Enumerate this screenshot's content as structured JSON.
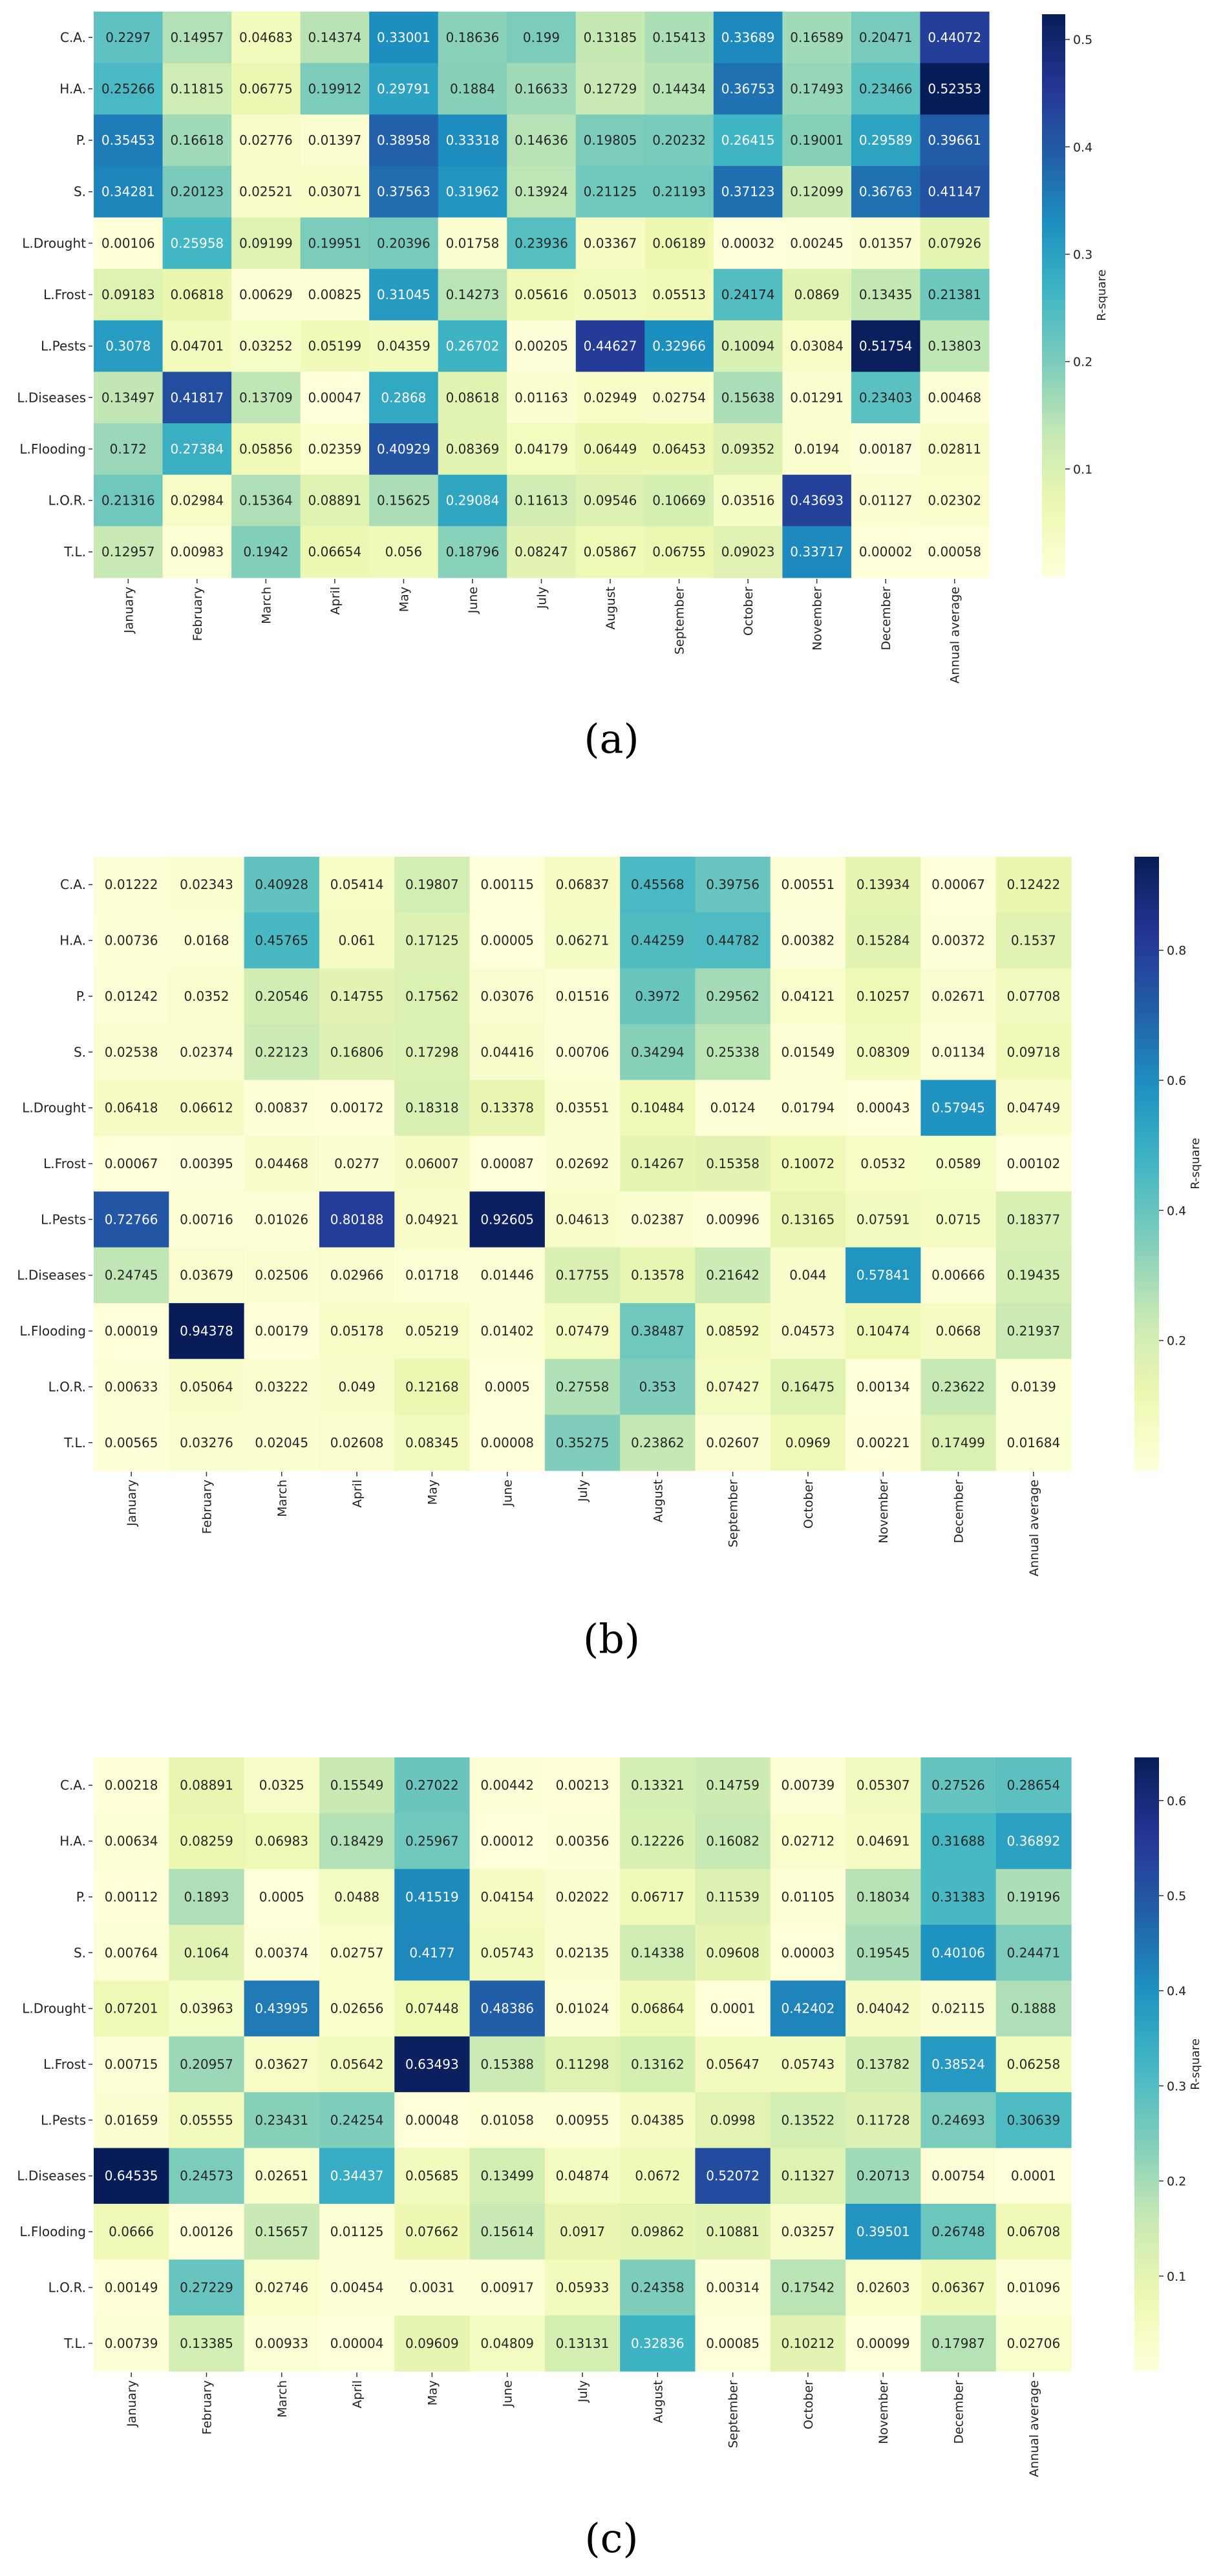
{
  "rows": [
    "C.A.",
    "H.A.",
    "P.",
    "S.",
    "L.Drought",
    "L.Frost",
    "L.Pests",
    "L.Diseases",
    "L.Flooding",
    "L.O.R.",
    "T.L."
  ],
  "columns": [
    "January",
    "February",
    "March",
    "April",
    "May",
    "June",
    "July",
    "August",
    "September",
    "October",
    "November",
    "December",
    "Annual average"
  ],
  "colorbar_title": "R-square",
  "chart_data": [
    {
      "type": "heatmap",
      "caption": "(a)",
      "vmax": 0.52353,
      "ticks": [
        "0.1",
        "0.2",
        "0.3",
        "0.4",
        "0.5"
      ],
      "values": [
        [
          "0.2297",
          "0.14957",
          "0.04683",
          "0.14374",
          "0.33001",
          "0.18636",
          "0.199",
          "0.13185",
          "0.15413",
          "0.33689",
          "0.16589",
          "0.20471",
          "0.44072"
        ],
        [
          "0.25266",
          "0.11815",
          "0.06775",
          "0.19912",
          "0.29791",
          "0.1884",
          "0.16633",
          "0.12729",
          "0.14434",
          "0.36753",
          "0.17493",
          "0.23466",
          "0.52353"
        ],
        [
          "0.35453",
          "0.16618",
          "0.02776",
          "0.01397",
          "0.38958",
          "0.33318",
          "0.14636",
          "0.19805",
          "0.20232",
          "0.26415",
          "0.19001",
          "0.29589",
          "0.39661"
        ],
        [
          "0.34281",
          "0.20123",
          "0.02521",
          "0.03071",
          "0.37563",
          "0.31962",
          "0.13924",
          "0.21125",
          "0.21193",
          "0.37123",
          "0.12099",
          "0.36763",
          "0.41147"
        ],
        [
          "0.00106",
          "0.25958",
          "0.09199",
          "0.19951",
          "0.20396",
          "0.01758",
          "0.23936",
          "0.03367",
          "0.06189",
          "0.00032",
          "0.00245",
          "0.01357",
          "0.07926"
        ],
        [
          "0.09183",
          "0.06818",
          "0.00629",
          "0.00825",
          "0.31045",
          "0.14273",
          "0.05616",
          "0.05013",
          "0.05513",
          "0.24174",
          "0.0869",
          "0.13435",
          "0.21381"
        ],
        [
          "0.3078",
          "0.04701",
          "0.03252",
          "0.05199",
          "0.04359",
          "0.26702",
          "0.00205",
          "0.44627",
          "0.32966",
          "0.10094",
          "0.03084",
          "0.51754",
          "0.13803"
        ],
        [
          "0.13497",
          "0.41817",
          "0.13709",
          "0.00047",
          "0.2868",
          "0.08618",
          "0.01163",
          "0.02949",
          "0.02754",
          "0.15638",
          "0.01291",
          "0.23403",
          "0.00468"
        ],
        [
          "0.172",
          "0.27384",
          "0.05856",
          "0.02359",
          "0.40929",
          "0.08369",
          "0.04179",
          "0.06449",
          "0.06453",
          "0.09352",
          "0.0194",
          "0.00187",
          "0.02811"
        ],
        [
          "0.21316",
          "0.02984",
          "0.15364",
          "0.08891",
          "0.15625",
          "0.29084",
          "0.11613",
          "0.09546",
          "0.10669",
          "0.03516",
          "0.43693",
          "0.01127",
          "0.02302"
        ],
        [
          "0.12957",
          "0.00983",
          "0.1942",
          "0.06654",
          "0.056",
          "0.18796",
          "0.08247",
          "0.05867",
          "0.06755",
          "0.09023",
          "0.33717",
          "0.00002",
          "0.00058"
        ]
      ]
    },
    {
      "type": "heatmap",
      "caption": "(b)",
      "vmax": 0.94378,
      "ticks": [
        "0.2",
        "0.4",
        "0.6",
        "0.8"
      ],
      "values": [
        [
          "0.01222",
          "0.02343",
          "0.40928",
          "0.05414",
          "0.19807",
          "0.00115",
          "0.06837",
          "0.45568",
          "0.39756",
          "0.00551",
          "0.13934",
          "0.00067",
          "0.12422"
        ],
        [
          "0.00736",
          "0.0168",
          "0.45765",
          "0.061",
          "0.17125",
          "0.00005",
          "0.06271",
          "0.44259",
          "0.44782",
          "0.00382",
          "0.15284",
          "0.00372",
          "0.1537"
        ],
        [
          "0.01242",
          "0.0352",
          "0.20546",
          "0.14755",
          "0.17562",
          "0.03076",
          "0.01516",
          "0.3972",
          "0.29562",
          "0.04121",
          "0.10257",
          "0.02671",
          "0.07708"
        ],
        [
          "0.02538",
          "0.02374",
          "0.22123",
          "0.16806",
          "0.17298",
          "0.04416",
          "0.00706",
          "0.34294",
          "0.25338",
          "0.01549",
          "0.08309",
          "0.01134",
          "0.09718"
        ],
        [
          "0.06418",
          "0.06612",
          "0.00837",
          "0.00172",
          "0.18318",
          "0.13378",
          "0.03551",
          "0.10484",
          "0.0124",
          "0.01794",
          "0.00043",
          "0.57945",
          "0.04749"
        ],
        [
          "0.00067",
          "0.00395",
          "0.04468",
          "0.0277",
          "0.06007",
          "0.00087",
          "0.02692",
          "0.14267",
          "0.15358",
          "0.10072",
          "0.0532",
          "0.0589",
          "0.00102"
        ],
        [
          "0.72766",
          "0.00716",
          "0.01026",
          "0.80188",
          "0.04921",
          "0.92605",
          "0.04613",
          "0.02387",
          "0.00996",
          "0.13165",
          "0.07591",
          "0.0715",
          "0.18377"
        ],
        [
          "0.24745",
          "0.03679",
          "0.02506",
          "0.02966",
          "0.01718",
          "0.01446",
          "0.17755",
          "0.13578",
          "0.21642",
          "0.044",
          "0.57841",
          "0.00666",
          "0.19435"
        ],
        [
          "0.00019",
          "0.94378",
          "0.00179",
          "0.05178",
          "0.05219",
          "0.01402",
          "0.07479",
          "0.38487",
          "0.08592",
          "0.04573",
          "0.10474",
          "0.0668",
          "0.21937"
        ],
        [
          "0.00633",
          "0.05064",
          "0.03222",
          "0.049",
          "0.12168",
          "0.0005",
          "0.27558",
          "0.353",
          "0.07427",
          "0.16475",
          "0.00134",
          "0.23622",
          "0.0139"
        ],
        [
          "0.00565",
          "0.03276",
          "0.02045",
          "0.02608",
          "0.08345",
          "0.00008",
          "0.35275",
          "0.23862",
          "0.02607",
          "0.0969",
          "0.00221",
          "0.17499",
          "0.01684"
        ]
      ]
    },
    {
      "type": "heatmap",
      "caption": "(c)",
      "vmax": 0.64535,
      "ticks": [
        "0.1",
        "0.2",
        "0.3",
        "0.4",
        "0.5",
        "0.6"
      ],
      "values": [
        [
          "0.00218",
          "0.08891",
          "0.0325",
          "0.15549",
          "0.27022",
          "0.00442",
          "0.00213",
          "0.13321",
          "0.14759",
          "0.00739",
          "0.05307",
          "0.27526",
          "0.28654"
        ],
        [
          "0.00634",
          "0.08259",
          "0.06983",
          "0.18429",
          "0.25967",
          "0.00012",
          "0.00356",
          "0.12226",
          "0.16082",
          "0.02712",
          "0.04691",
          "0.31688",
          "0.36892"
        ],
        [
          "0.00112",
          "0.1893",
          "0.0005",
          "0.0488",
          "0.41519",
          "0.04154",
          "0.02022",
          "0.06717",
          "0.11539",
          "0.01105",
          "0.18034",
          "0.31383",
          "0.19196"
        ],
        [
          "0.00764",
          "0.1064",
          "0.00374",
          "0.02757",
          "0.4177",
          "0.05743",
          "0.02135",
          "0.14338",
          "0.09608",
          "0.00003",
          "0.19545",
          "0.40106",
          "0.24471"
        ],
        [
          "0.07201",
          "0.03963",
          "0.43995",
          "0.02656",
          "0.07448",
          "0.48386",
          "0.01024",
          "0.06864",
          "0.0001",
          "0.42402",
          "0.04042",
          "0.02115",
          "0.1888"
        ],
        [
          "0.00715",
          "0.20957",
          "0.03627",
          "0.05642",
          "0.63493",
          "0.15388",
          "0.11298",
          "0.13162",
          "0.05647",
          "0.05743",
          "0.13782",
          "0.38524",
          "0.06258"
        ],
        [
          "0.01659",
          "0.05555",
          "0.23431",
          "0.24254",
          "0.00048",
          "0.01058",
          "0.00955",
          "0.04385",
          "0.0998",
          "0.13522",
          "0.11728",
          "0.24693",
          "0.30639"
        ],
        [
          "0.64535",
          "0.24573",
          "0.02651",
          "0.34437",
          "0.05685",
          "0.13499",
          "0.04874",
          "0.0672",
          "0.52072",
          "0.11327",
          "0.20713",
          "0.00754",
          "0.0001"
        ],
        [
          "0.0666",
          "0.00126",
          "0.15657",
          "0.01125",
          "0.07662",
          "0.15614",
          "0.0917",
          "0.09862",
          "0.10881",
          "0.03257",
          "0.39501",
          "0.26748",
          "0.06708"
        ],
        [
          "0.00149",
          "0.27229",
          "0.02746",
          "0.00454",
          "0.0031",
          "0.00917",
          "0.05933",
          "0.24358",
          "0.00314",
          "0.17542",
          "0.02603",
          "0.06367",
          "0.01096"
        ],
        [
          "0.00739",
          "0.13385",
          "0.00933",
          "0.00004",
          "0.09609",
          "0.04809",
          "0.13131",
          "0.32836",
          "0.00085",
          "0.10212",
          "0.00099",
          "0.17987",
          "0.02706"
        ]
      ]
    }
  ]
}
